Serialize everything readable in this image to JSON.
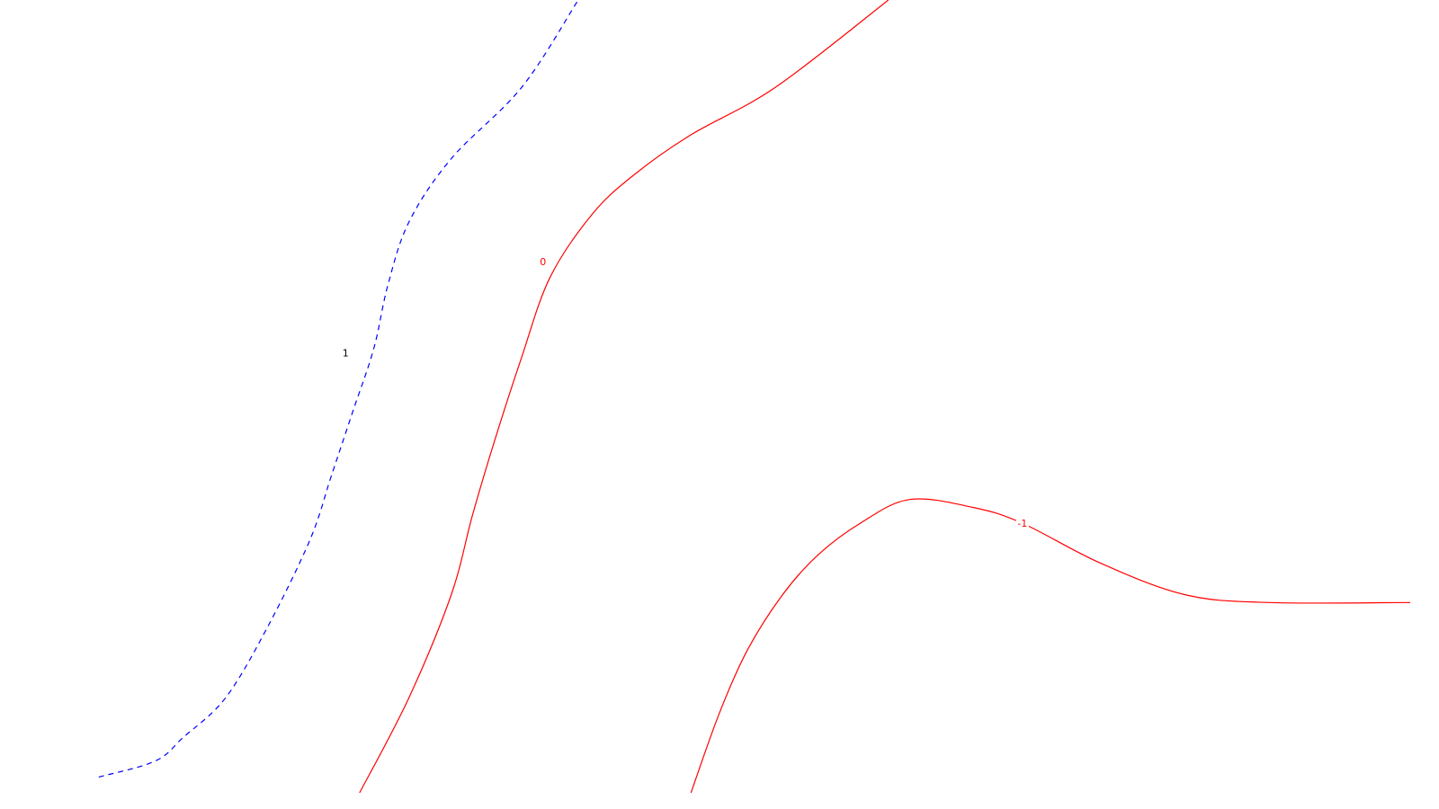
{
  "chart_data": {
    "type": "contour",
    "contours": [
      {
        "level_label": "1",
        "color": "#0000ff",
        "style": "dashed",
        "points": [
          [
            0.07,
            0.02
          ],
          [
            0.11,
            0.04
          ],
          [
            0.13,
            0.07
          ],
          [
            0.16,
            0.12
          ],
          [
            0.19,
            0.21
          ],
          [
            0.22,
            0.32
          ],
          [
            0.235,
            0.4
          ],
          [
            0.25,
            0.48
          ],
          [
            0.265,
            0.56
          ],
          [
            0.275,
            0.64
          ],
          [
            0.29,
            0.72
          ],
          [
            0.32,
            0.8
          ],
          [
            0.37,
            0.89
          ],
          [
            0.41,
            1.0
          ]
        ]
      },
      {
        "level_label": "0",
        "color": "#ff0000",
        "style": "solid",
        "points": [
          [
            0.255,
            0.0
          ],
          [
            0.29,
            0.12
          ],
          [
            0.32,
            0.25
          ],
          [
            0.335,
            0.35
          ],
          [
            0.35,
            0.44
          ],
          [
            0.37,
            0.55
          ],
          [
            0.39,
            0.65
          ],
          [
            0.42,
            0.73
          ],
          [
            0.45,
            0.78
          ],
          [
            0.49,
            0.83
          ],
          [
            0.55,
            0.89
          ],
          [
            0.63,
            1.0
          ]
        ]
      },
      {
        "level_label": "-1",
        "color": "#ff0000",
        "style": "solid",
        "points": [
          [
            0.49,
            0.0
          ],
          [
            0.51,
            0.1
          ],
          [
            0.53,
            0.18
          ],
          [
            0.555,
            0.25
          ],
          [
            0.58,
            0.3
          ],
          [
            0.61,
            0.34
          ],
          [
            0.645,
            0.37
          ],
          [
            0.69,
            0.36
          ],
          [
            0.725,
            0.34
          ],
          [
            0.78,
            0.29
          ],
          [
            0.84,
            0.25
          ],
          [
            0.9,
            0.24
          ],
          [
            1.0,
            0.24
          ]
        ]
      }
    ],
    "labels": [
      {
        "text": "1",
        "color": "#000000",
        "x": 0.245,
        "y": 0.555
      },
      {
        "text": "0",
        "color": "#ff0000",
        "x": 0.385,
        "y": 0.67
      },
      {
        "text": "-1",
        "color": "#ff0000",
        "x": 0.725,
        "y": 0.34
      }
    ],
    "xlim": [
      0,
      1
    ],
    "ylim": [
      0,
      1
    ],
    "grid": false
  }
}
